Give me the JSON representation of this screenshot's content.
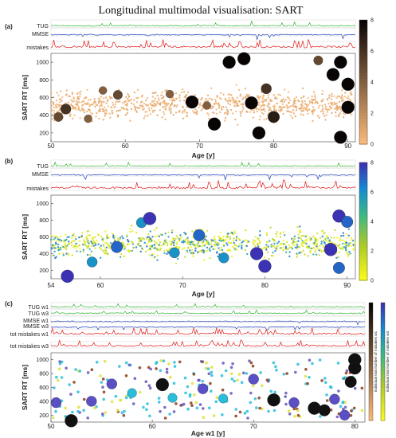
{
  "title": "Longitudinal multimodal visualisation: SART",
  "colors": {
    "tug": "#2fb52f",
    "mmse": "#1f3fbf",
    "mistakes": "#e01515",
    "bubble_dark": "#111111"
  },
  "chart_data": [
    {
      "panel_label": "(a)",
      "type": "scatter",
      "ylabel": "SART RT [ms]",
      "xlabel": "Age [y]",
      "x_ticks": [
        50,
        60,
        70,
        80,
        90
      ],
      "x_range": [
        50,
        91
      ],
      "y_ticks": [
        200,
        400,
        600,
        800,
        1000
      ],
      "y_range": [
        100,
        1100
      ],
      "strip_labels": [
        "TUG",
        "MMSE",
        "mistakes"
      ],
      "colorbar": {
        "colormap": "copper",
        "ticks": [
          0,
          2,
          4,
          6,
          8
        ],
        "range": [
          0,
          8
        ]
      },
      "points": [
        {
          "x": 51,
          "y": 380,
          "v": 5
        },
        {
          "x": 52,
          "y": 470,
          "v": 6
        },
        {
          "x": 55,
          "y": 360,
          "v": 4
        },
        {
          "x": 57,
          "y": 680,
          "v": 4
        },
        {
          "x": 59,
          "y": 630,
          "v": 5
        },
        {
          "x": 66,
          "y": 640,
          "v": 4
        },
        {
          "x": 69,
          "y": 550,
          "v": 8
        },
        {
          "x": 71,
          "y": 510,
          "v": 4
        },
        {
          "x": 72,
          "y": 300,
          "v": 8
        },
        {
          "x": 74,
          "y": 1000,
          "v": 8
        },
        {
          "x": 76,
          "y": 1040,
          "v": 8
        },
        {
          "x": 77,
          "y": 540,
          "v": 8
        },
        {
          "x": 78,
          "y": 200,
          "v": 8
        },
        {
          "x": 79,
          "y": 700,
          "v": 6
        },
        {
          "x": 80,
          "y": 380,
          "v": 7
        },
        {
          "x": 86,
          "y": 1020,
          "v": 5
        },
        {
          "x": 88,
          "y": 860,
          "v": 8
        },
        {
          "x": 89,
          "y": 1000,
          "v": 8
        },
        {
          "x": 90,
          "y": 750,
          "v": 8
        },
        {
          "x": 90,
          "y": 490,
          "v": 8
        },
        {
          "x": 89,
          "y": 150,
          "v": 8
        }
      ]
    },
    {
      "panel_label": "(b)",
      "type": "scatter",
      "ylabel": "SART RT [ms]",
      "xlabel": "Age [y]",
      "x_ticks": [
        54,
        60,
        70,
        80,
        90
      ],
      "x_range": [
        54,
        91
      ],
      "y_ticks": [
        200,
        400,
        600,
        800,
        1000
      ],
      "y_range": [
        100,
        1100
      ],
      "strip_labels": [
        "TUG",
        "MMSE",
        "mistakes"
      ],
      "colorbar": {
        "colormap": "parula",
        "ticks": [
          0,
          2,
          4,
          6,
          8
        ],
        "range": [
          0,
          8
        ]
      },
      "points": [
        {
          "x": 56,
          "y": 130,
          "v": 8
        },
        {
          "x": 59,
          "y": 300,
          "v": 6
        },
        {
          "x": 62,
          "y": 480,
          "v": 7
        },
        {
          "x": 65,
          "y": 770,
          "v": 6
        },
        {
          "x": 66,
          "y": 820,
          "v": 8
        },
        {
          "x": 69,
          "y": 410,
          "v": 6
        },
        {
          "x": 72,
          "y": 620,
          "v": 7
        },
        {
          "x": 75,
          "y": 350,
          "v": 6
        },
        {
          "x": 79,
          "y": 400,
          "v": 8
        },
        {
          "x": 80,
          "y": 250,
          "v": 8
        },
        {
          "x": 88,
          "y": 450,
          "v": 8
        },
        {
          "x": 89,
          "y": 850,
          "v": 8
        },
        {
          "x": 90,
          "y": 780,
          "v": 7
        },
        {
          "x": 89,
          "y": 230,
          "v": 7
        }
      ]
    },
    {
      "panel_label": "(c)",
      "type": "scatter",
      "ylabel": "SART RT [ms]",
      "xlabel": "Age w1 [y]",
      "x_ticks": [
        50,
        60,
        70,
        80
      ],
      "x_range": [
        50,
        81
      ],
      "y_ticks": [
        200,
        400,
        600,
        800,
        1000
      ],
      "y_range": [
        100,
        1100
      ],
      "strip_labels": [
        "TUG w1",
        "TUG w3",
        "MMSE w1",
        "MMSE w3",
        "tot mistakes w1",
        "tot mistakes w3"
      ],
      "colorbar_labels": [
        "individual trial number of mistakes w1",
        "individual trial number of mistakes w3"
      ],
      "points": [
        {
          "x": 50.5,
          "y": 380,
          "v": 6
        },
        {
          "x": 52,
          "y": 120,
          "v": 8
        },
        {
          "x": 54,
          "y": 400,
          "v": 6
        },
        {
          "x": 56,
          "y": 650,
          "v": 6
        },
        {
          "x": 58,
          "y": 520,
          "v": 5
        },
        {
          "x": 61,
          "y": 640,
          "v": 8
        },
        {
          "x": 62,
          "y": 450,
          "v": 5
        },
        {
          "x": 65,
          "y": 580,
          "v": 6
        },
        {
          "x": 67,
          "y": 440,
          "v": 5
        },
        {
          "x": 70,
          "y": 720,
          "v": 6
        },
        {
          "x": 72,
          "y": 420,
          "v": 8
        },
        {
          "x": 74,
          "y": 380,
          "v": 6
        },
        {
          "x": 76,
          "y": 300,
          "v": 8
        },
        {
          "x": 77,
          "y": 270,
          "v": 7
        },
        {
          "x": 78,
          "y": 430,
          "v": 6
        },
        {
          "x": 79,
          "y": 200,
          "v": 6
        },
        {
          "x": 80,
          "y": 1000,
          "v": 8
        },
        {
          "x": 80,
          "y": 880,
          "v": 8
        },
        {
          "x": 79.6,
          "y": 680,
          "v": 7
        }
      ]
    }
  ]
}
